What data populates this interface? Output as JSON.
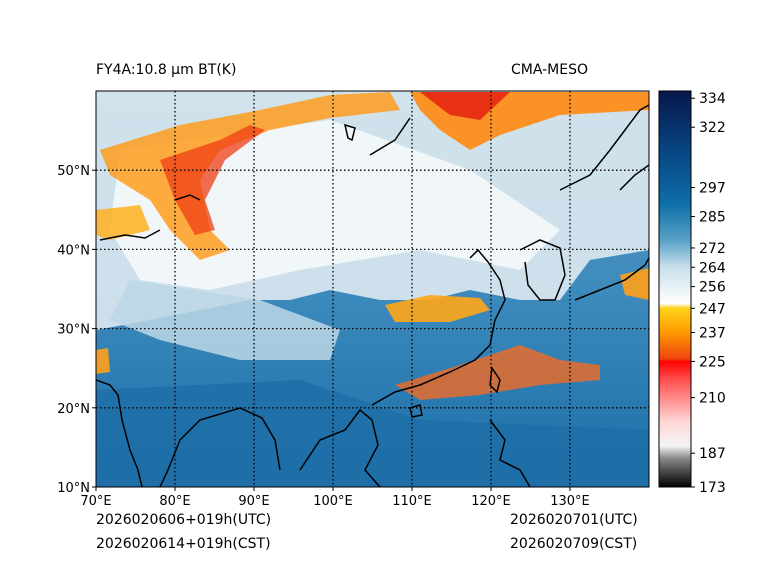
{
  "header": {
    "product_title": "FY4A:10.8 μm BT(K)",
    "model_name": "CMA-MESO"
  },
  "footer": {
    "init_utc": "2026020606+019h(UTC)",
    "init_cst": "2026020614+019h(CST)",
    "valid_utc": "2026020701(UTC)",
    "valid_cst": "2026020709(CST)"
  },
  "map": {
    "lon_range": [
      70,
      140
    ],
    "lat_range": [
      10,
      60
    ],
    "lon_ticks": [
      {
        "value": 70,
        "label": "70°E"
      },
      {
        "value": 80,
        "label": "80°E"
      },
      {
        "value": 90,
        "label": "90°E"
      },
      {
        "value": 100,
        "label": "100°E"
      },
      {
        "value": 110,
        "label": "110°E"
      },
      {
        "value": 120,
        "label": "120°E"
      },
      {
        "value": 130,
        "label": "130°E"
      }
    ],
    "lat_ticks": [
      {
        "value": 10,
        "label": "10°N"
      },
      {
        "value": 20,
        "label": "20°N"
      },
      {
        "value": 30,
        "label": "30°N"
      },
      {
        "value": 40,
        "label": "40°N"
      },
      {
        "value": 50,
        "label": "50°N"
      }
    ]
  },
  "colorbar": {
    "range": [
      173,
      337
    ],
    "ticks": [
      {
        "value": 173,
        "label": "173"
      },
      {
        "value": 187,
        "label": "187"
      },
      {
        "value": 210,
        "label": "210"
      },
      {
        "value": 225,
        "label": "225"
      },
      {
        "value": 237,
        "label": "237"
      },
      {
        "value": 247,
        "label": "247"
      },
      {
        "value": 256,
        "label": "256"
      },
      {
        "value": 264,
        "label": "264"
      },
      {
        "value": 272,
        "label": "272"
      },
      {
        "value": 285,
        "label": "285"
      },
      {
        "value": 297,
        "label": "297"
      },
      {
        "value": 322,
        "label": "322"
      },
      {
        "value": 334,
        "label": "334"
      }
    ],
    "stops": [
      {
        "value": 173,
        "color": "#000000"
      },
      {
        "value": 185,
        "color": "#8a8a8a"
      },
      {
        "value": 190,
        "color": "#f5f5f5"
      },
      {
        "value": 200,
        "color": "#ffd6d6"
      },
      {
        "value": 218,
        "color": "#ff4a4a"
      },
      {
        "value": 225,
        "color": "#ff0000"
      },
      {
        "value": 226,
        "color": "#ee4411"
      },
      {
        "value": 237,
        "color": "#ff9a00"
      },
      {
        "value": 247,
        "color": "#ffd21a"
      },
      {
        "value": 249,
        "color": "#ffffff"
      },
      {
        "value": 264,
        "color": "#c9e0ec"
      },
      {
        "value": 275,
        "color": "#5aa2c8"
      },
      {
        "value": 290,
        "color": "#0f6fa8"
      },
      {
        "value": 310,
        "color": "#084a88"
      },
      {
        "value": 337,
        "color": "#06164a"
      }
    ]
  }
}
